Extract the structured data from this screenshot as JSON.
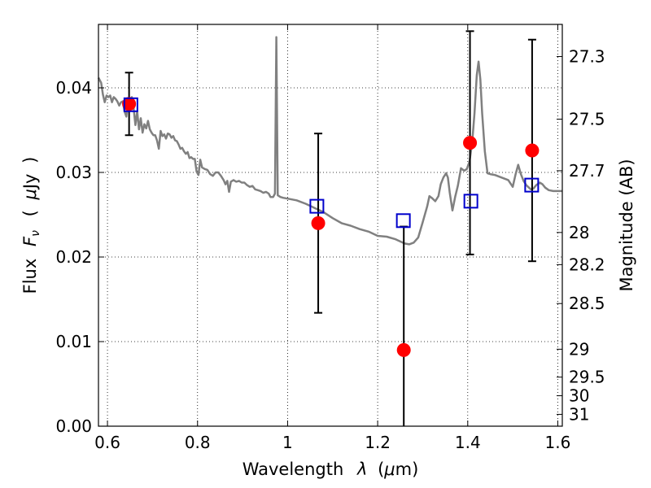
{
  "chart_data": {
    "type": "scatter",
    "xlabel_parts": [
      "Wavelength",
      "λ",
      "(",
      "μ",
      "m)"
    ],
    "ylabel_parts": [
      "Flux",
      "F",
      "ν",
      "(",
      "μ",
      "Jy",
      ")"
    ],
    "ylabel_right": "Magnitude (AB)",
    "xlim": [
      0.58,
      1.61
    ],
    "ylim": [
      0.0,
      0.0475
    ],
    "x_ticks": [
      {
        "value": 0.6,
        "label": "0.6"
      },
      {
        "value": 0.8,
        "label": "0.8"
      },
      {
        "value": 1.0,
        "label": "1"
      },
      {
        "value": 1.2,
        "label": "1.2"
      },
      {
        "value": 1.4,
        "label": "1.4"
      },
      {
        "value": 1.6,
        "label": "1.6"
      }
    ],
    "y_ticks": [
      {
        "value": 0.0,
        "label": "0.00"
      },
      {
        "value": 0.01,
        "label": "0.01"
      },
      {
        "value": 0.02,
        "label": "0.02"
      },
      {
        "value": 0.03,
        "label": "0.03"
      },
      {
        "value": 0.04,
        "label": "0.04"
      }
    ],
    "right_ticks": [
      {
        "flux": 0.0437,
        "label": "27.3"
      },
      {
        "flux": 0.0363,
        "label": "27.5"
      },
      {
        "flux": 0.0302,
        "label": "27.7"
      },
      {
        "flux": 0.0229,
        "label": "28"
      },
      {
        "flux": 0.0191,
        "label": "28.2"
      },
      {
        "flux": 0.0145,
        "label": "28.5"
      },
      {
        "flux": 0.0091,
        "label": "29"
      },
      {
        "flux": 0.0058,
        "label": "29.5"
      },
      {
        "flux": 0.0036,
        "label": "30"
      },
      {
        "flux": 0.0014,
        "label": "31"
      }
    ],
    "grid": true,
    "series": [
      {
        "kind": "line",
        "color": "#808080",
        "points": [
          [
            0.58,
            0.0412
          ],
          [
            0.586,
            0.0406
          ],
          [
            0.59,
            0.0392
          ],
          [
            0.594,
            0.0383
          ],
          [
            0.598,
            0.0391
          ],
          [
            0.602,
            0.0389
          ],
          [
            0.606,
            0.0391
          ],
          [
            0.61,
            0.0383
          ],
          [
            0.614,
            0.0389
          ],
          [
            0.618,
            0.0387
          ],
          [
            0.622,
            0.0384
          ],
          [
            0.626,
            0.0379
          ],
          [
            0.63,
            0.0383
          ],
          [
            0.634,
            0.0384
          ],
          [
            0.638,
            0.0372
          ],
          [
            0.642,
            0.0366
          ],
          [
            0.646,
            0.0384
          ],
          [
            0.65,
            0.0383
          ],
          [
            0.654,
            0.0389
          ],
          [
            0.658,
            0.0376
          ],
          [
            0.662,
            0.0356
          ],
          [
            0.666,
            0.0372
          ],
          [
            0.67,
            0.0351
          ],
          [
            0.674,
            0.0364
          ],
          [
            0.678,
            0.0347
          ],
          [
            0.682,
            0.0357
          ],
          [
            0.686,
            0.0352
          ],
          [
            0.69,
            0.0361
          ],
          [
            0.694,
            0.0351
          ],
          [
            0.698,
            0.0347
          ],
          [
            0.702,
            0.0344
          ],
          [
            0.706,
            0.0344
          ],
          [
            0.71,
            0.0338
          ],
          [
            0.714,
            0.0328
          ],
          [
            0.718,
            0.0349
          ],
          [
            0.722,
            0.0343
          ],
          [
            0.726,
            0.0345
          ],
          [
            0.73,
            0.034
          ],
          [
            0.734,
            0.0346
          ],
          [
            0.738,
            0.0345
          ],
          [
            0.742,
            0.0341
          ],
          [
            0.746,
            0.0343
          ],
          [
            0.75,
            0.0338
          ],
          [
            0.754,
            0.0337
          ],
          [
            0.758,
            0.0333
          ],
          [
            0.762,
            0.0328
          ],
          [
            0.766,
            0.0329
          ],
          [
            0.77,
            0.0325
          ],
          [
            0.774,
            0.0322
          ],
          [
            0.778,
            0.0324
          ],
          [
            0.782,
            0.0317
          ],
          [
            0.786,
            0.0318
          ],
          [
            0.79,
            0.0316
          ],
          [
            0.794,
            0.0316
          ],
          [
            0.798,
            0.0301
          ],
          [
            0.802,
            0.0297
          ],
          [
            0.806,
            0.0315
          ],
          [
            0.81,
            0.0306
          ],
          [
            0.816,
            0.0304
          ],
          [
            0.822,
            0.0303
          ],
          [
            0.828,
            0.0298
          ],
          [
            0.834,
            0.0296
          ],
          [
            0.84,
            0.03
          ],
          [
            0.846,
            0.03
          ],
          [
            0.852,
            0.0296
          ],
          [
            0.858,
            0.0291
          ],
          [
            0.862,
            0.0286
          ],
          [
            0.866,
            0.029
          ],
          [
            0.87,
            0.0277
          ],
          [
            0.874,
            0.0289
          ],
          [
            0.88,
            0.0291
          ],
          [
            0.886,
            0.0289
          ],
          [
            0.892,
            0.029
          ],
          [
            0.898,
            0.0288
          ],
          [
            0.904,
            0.0288
          ],
          [
            0.91,
            0.0285
          ],
          [
            0.916,
            0.0283
          ],
          [
            0.922,
            0.0284
          ],
          [
            0.928,
            0.028
          ],
          [
            0.934,
            0.0279
          ],
          [
            0.94,
            0.0278
          ],
          [
            0.946,
            0.0276
          ],
          [
            0.952,
            0.0277
          ],
          [
            0.958,
            0.0275
          ],
          [
            0.962,
            0.0271
          ],
          [
            0.968,
            0.0271
          ],
          [
            0.972,
            0.0275
          ],
          [
            0.975,
            0.046
          ],
          [
            0.978,
            0.0273
          ],
          [
            0.984,
            0.0271
          ],
          [
            0.99,
            0.027
          ],
          [
            1.0,
            0.0269
          ],
          [
            1.02,
            0.0267
          ],
          [
            1.04,
            0.0263
          ],
          [
            1.06,
            0.0258
          ],
          [
            1.08,
            0.0253
          ],
          [
            1.1,
            0.0246
          ],
          [
            1.12,
            0.024
          ],
          [
            1.14,
            0.0237
          ],
          [
            1.16,
            0.0233
          ],
          [
            1.18,
            0.023
          ],
          [
            1.2,
            0.0225
          ],
          [
            1.22,
            0.0224
          ],
          [
            1.24,
            0.0221
          ],
          [
            1.26,
            0.0216
          ],
          [
            1.27,
            0.0215
          ],
          [
            1.28,
            0.0217
          ],
          [
            1.29,
            0.0223
          ],
          [
            1.3,
            0.0241
          ],
          [
            1.31,
            0.026
          ],
          [
            1.315,
            0.0272
          ],
          [
            1.32,
            0.027
          ],
          [
            1.328,
            0.0266
          ],
          [
            1.335,
            0.0272
          ],
          [
            1.34,
            0.0286
          ],
          [
            1.346,
            0.0294
          ],
          [
            1.352,
            0.0299
          ],
          [
            1.356,
            0.0294
          ],
          [
            1.36,
            0.0276
          ],
          [
            1.366,
            0.0255
          ],
          [
            1.372,
            0.0271
          ],
          [
            1.378,
            0.0284
          ],
          [
            1.385,
            0.0305
          ],
          [
            1.392,
            0.0302
          ],
          [
            1.398,
            0.0304
          ],
          [
            1.404,
            0.0313
          ],
          [
            1.41,
            0.0336
          ],
          [
            1.415,
            0.037
          ],
          [
            1.42,
            0.0415
          ],
          [
            1.424,
            0.0431
          ],
          [
            1.428,
            0.041
          ],
          [
            1.432,
            0.037
          ],
          [
            1.438,
            0.0325
          ],
          [
            1.444,
            0.0299
          ],
          [
            1.45,
            0.0298
          ],
          [
            1.46,
            0.0297
          ],
          [
            1.47,
            0.0295
          ],
          [
            1.48,
            0.0293
          ],
          [
            1.49,
            0.0291
          ],
          [
            1.5,
            0.0283
          ],
          [
            1.506,
            0.0297
          ],
          [
            1.512,
            0.0309
          ],
          [
            1.518,
            0.0298
          ],
          [
            1.524,
            0.029
          ],
          [
            1.53,
            0.0285
          ],
          [
            1.536,
            0.0282
          ],
          [
            1.54,
            0.028
          ],
          [
            1.546,
            0.0281
          ],
          [
            1.552,
            0.0285
          ],
          [
            1.56,
            0.0288
          ],
          [
            1.566,
            0.0286
          ],
          [
            1.572,
            0.0282
          ],
          [
            1.58,
            0.0279
          ],
          [
            1.59,
            0.0278
          ],
          [
            1.61,
            0.0278
          ]
        ]
      },
      {
        "kind": "points-with-errors",
        "marker": "circle",
        "color": "#ff0000",
        "points": [
          {
            "x": 0.648,
            "y": 0.0381,
            "yerr": 0.0037
          },
          {
            "x": 1.068,
            "y": 0.024,
            "yerr": 0.0106
          },
          {
            "x": 1.258,
            "y": 0.009,
            "yerr": 0.0146
          },
          {
            "x": 1.405,
            "y": 0.0335,
            "yerr": 0.0132
          },
          {
            "x": 1.543,
            "y": 0.0326,
            "yerr": 0.0131
          }
        ]
      },
      {
        "kind": "points",
        "marker": "open-square",
        "color": "#0000cc",
        "points": [
          {
            "x": 0.652,
            "y": 0.038
          },
          {
            "x": 1.065,
            "y": 0.026
          },
          {
            "x": 1.257,
            "y": 0.0243
          },
          {
            "x": 1.407,
            "y": 0.0266
          },
          {
            "x": 1.542,
            "y": 0.0285
          }
        ]
      }
    ]
  }
}
